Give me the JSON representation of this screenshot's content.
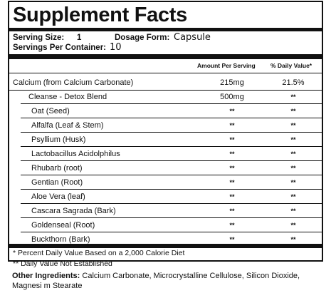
{
  "title": "Supplement Facts",
  "serving": {
    "size_label": "Serving Size:",
    "size_value": "1",
    "form_label": "Dosage Form:",
    "form_value": "Capsule",
    "per_container_label": "Servings Per Container:",
    "per_container_value": "10"
  },
  "columns": {
    "amount": "Amount Per Serving",
    "daily_value": "% Daily Value*"
  },
  "calcium": {
    "name": "Calcium (from Calcium Carbonate)",
    "amount": "215mg",
    "dv": "21.5%"
  },
  "blend": {
    "name": "Cleanse - Detox Blend",
    "amount": "500mg",
    "dv": "**"
  },
  "ingredients": [
    {
      "name": "Oat (Seed)",
      "amount": "**",
      "dv": "**"
    },
    {
      "name": "Alfalfa (Leaf & Stem)",
      "amount": "**",
      "dv": "**"
    },
    {
      "name": "Psyllium (Husk)",
      "amount": "**",
      "dv": "**"
    },
    {
      "name": "Lactobacillus Acidolphilus",
      "amount": "**",
      "dv": "**"
    },
    {
      "name": "Rhubarb (root)",
      "amount": "**",
      "dv": "**"
    },
    {
      "name": "Gentian  (Root)",
      "amount": "**",
      "dv": "**"
    },
    {
      "name": "Aloe Vera (leaf)",
      "amount": "**",
      "dv": "**"
    },
    {
      "name": "Cascara Sagrada (Bark)",
      "amount": "**",
      "dv": "**"
    },
    {
      "name": "Goldenseal (Root)",
      "amount": "**",
      "dv": "**"
    },
    {
      "name": "Buckthorn (Bark)",
      "amount": "**",
      "dv": "**"
    }
  ],
  "footnotes": [
    "* Percent Daily Value Based on a 2,000 Calorie Diet",
    "** Daily Value Not Established"
  ],
  "other": {
    "label": "Other Ingredients:",
    "text": " Calcium Carbonate, Microcrystalline Cellulose, Silicon Dioxide, Magnesi  m Stearate"
  }
}
